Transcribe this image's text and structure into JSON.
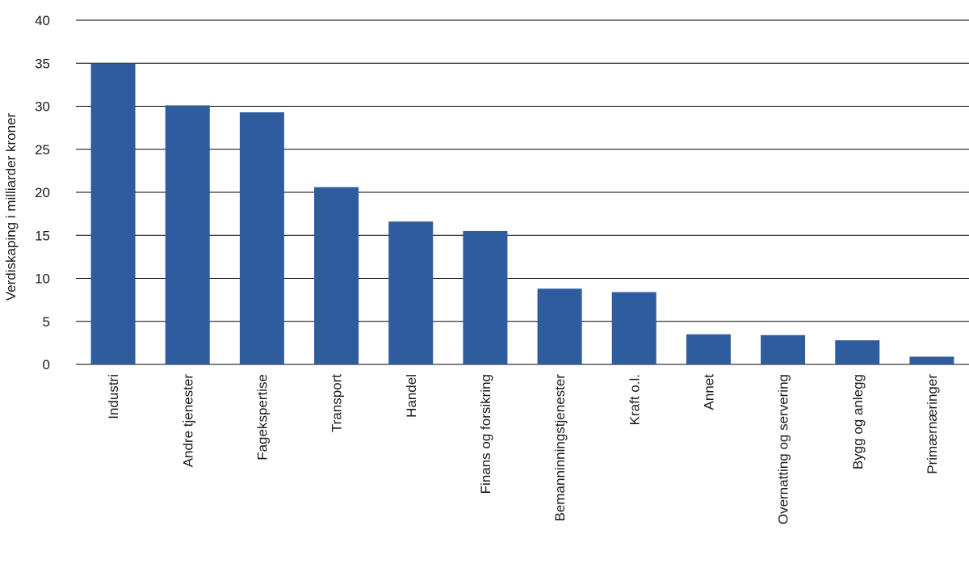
{
  "chart_data": {
    "type": "bar",
    "title": "",
    "xlabel": "",
    "ylabel": "Verdiskaping i milliarder kroner",
    "ylim": [
      0,
      40
    ],
    "yticks": [
      0,
      5,
      10,
      15,
      20,
      25,
      30,
      35,
      40
    ],
    "grid": true,
    "categories": [
      "Industri",
      "Andre tjenester",
      "Fagekspertise",
      "Transport",
      "Handel",
      "Finans og forsikring",
      "Bemanninningstjenester",
      "Kraft o.l.",
      "Annet",
      "Overnatting og servering",
      "Bygg og anlegg",
      "Primærnæringer"
    ],
    "values": [
      35.0,
      30.1,
      29.3,
      20.6,
      16.6,
      15.5,
      8.8,
      8.4,
      3.5,
      3.4,
      2.8,
      0.9
    ],
    "colors": {
      "bar": "#2e5c9e",
      "grid": "#000000",
      "text": "#1a1a1a"
    }
  }
}
